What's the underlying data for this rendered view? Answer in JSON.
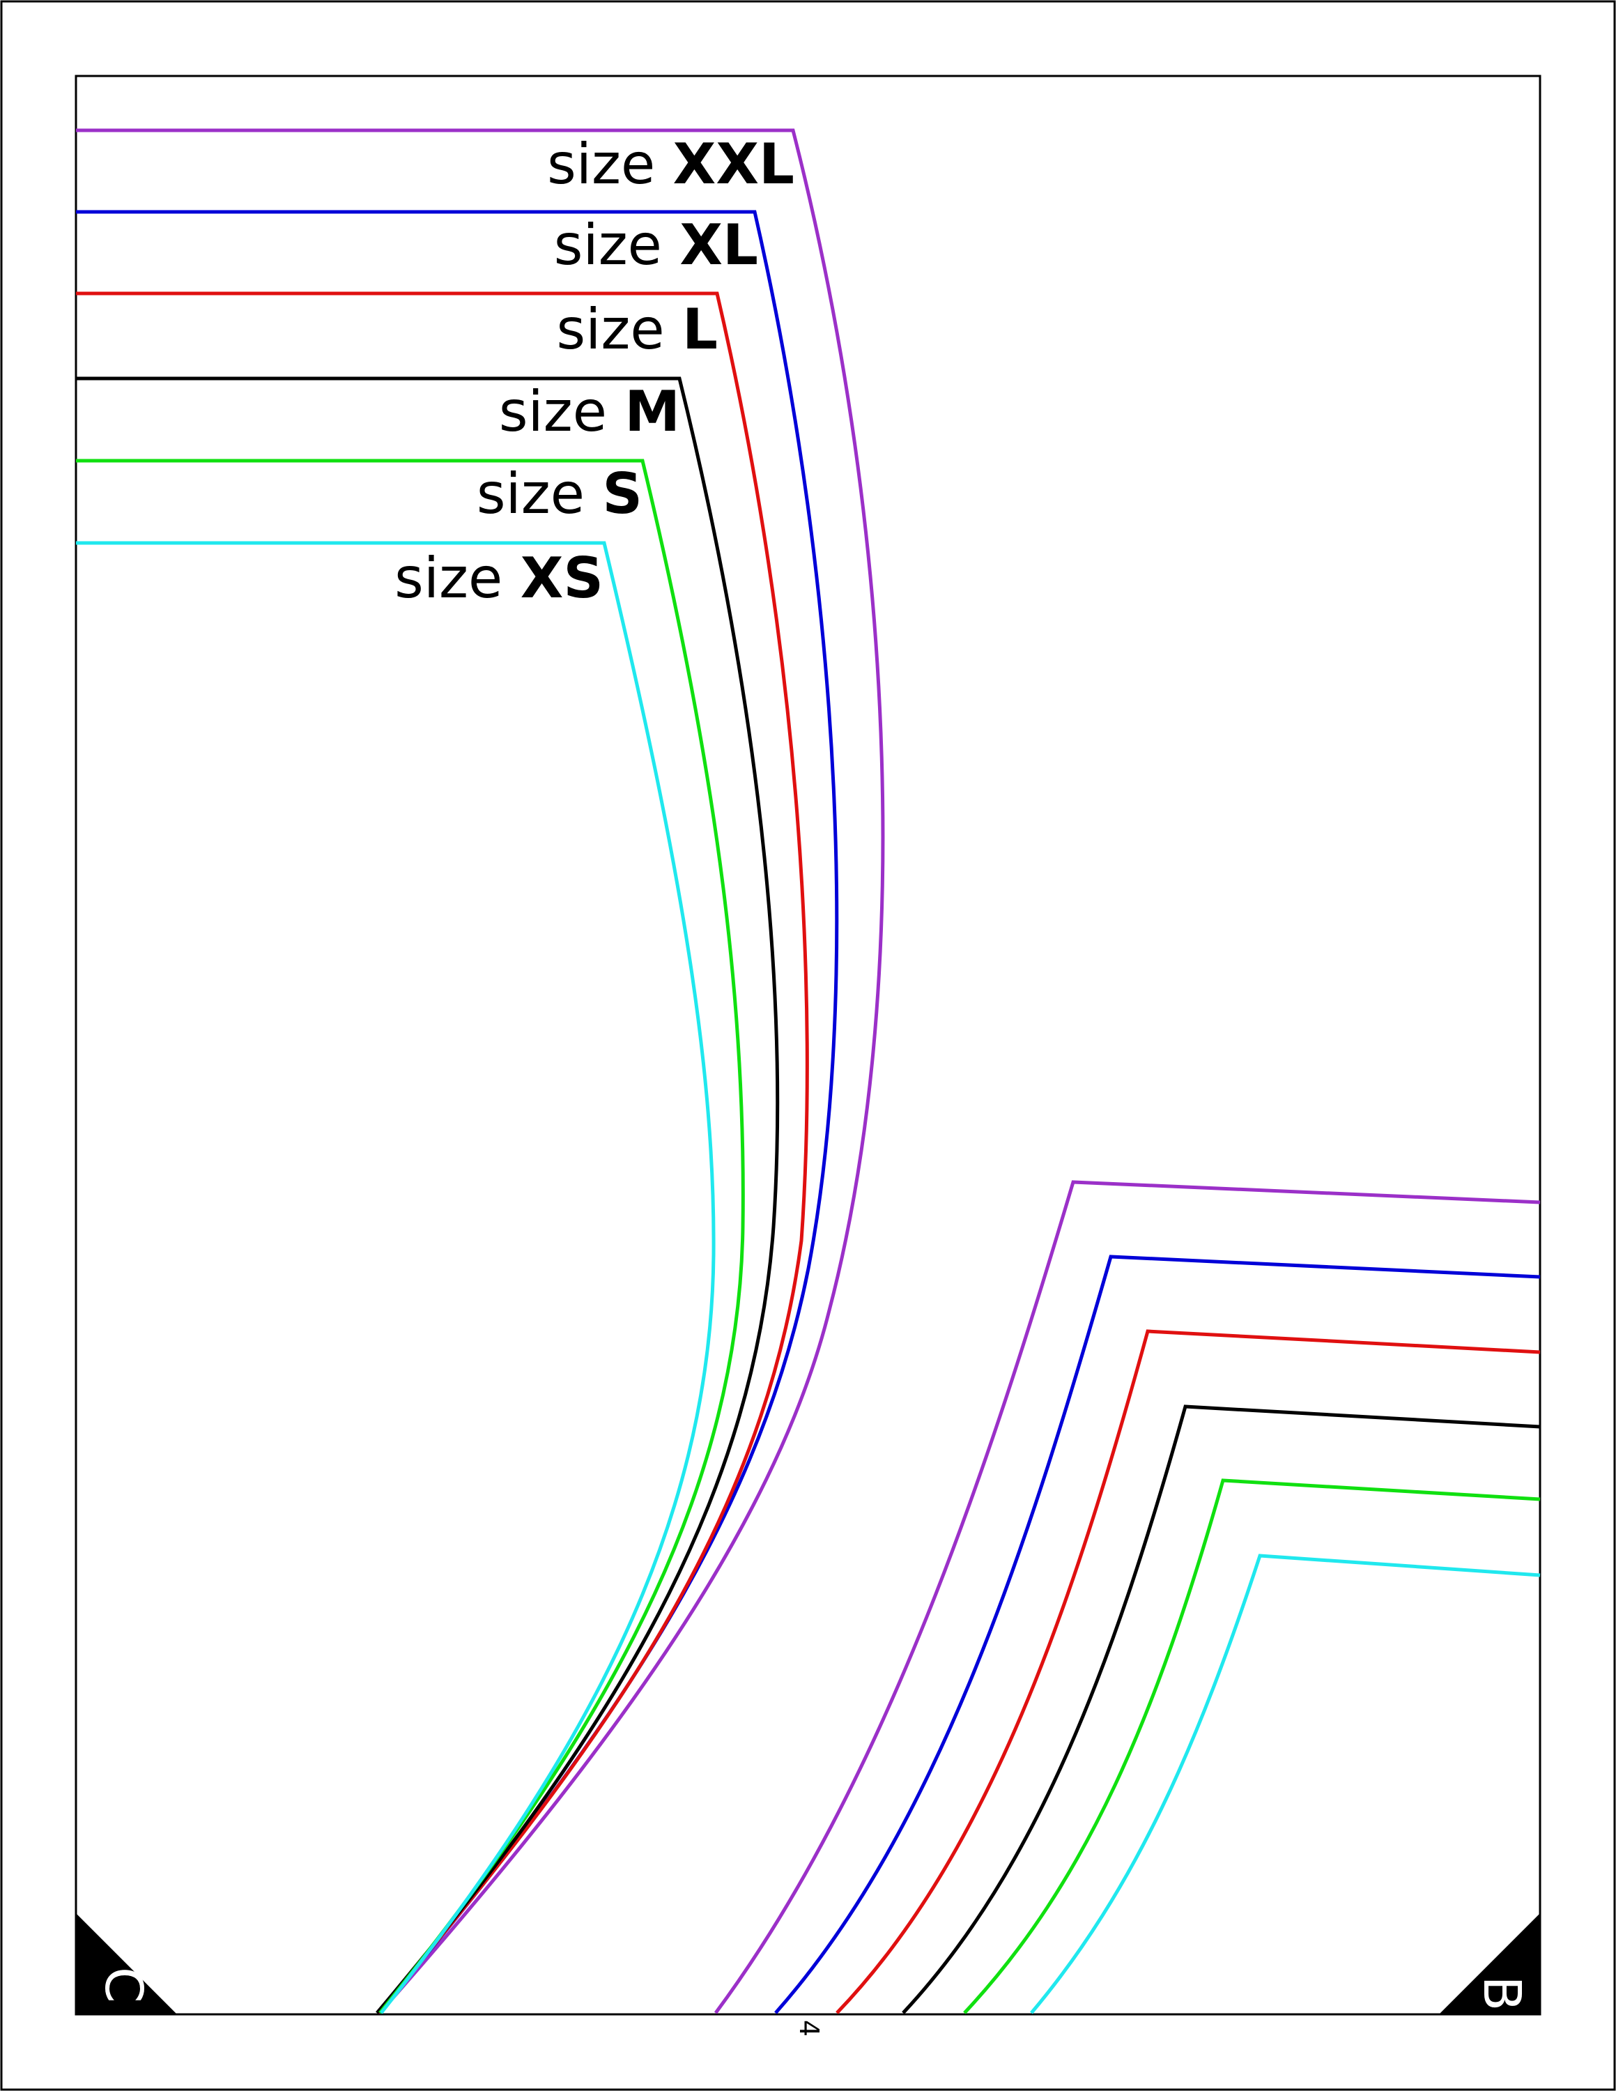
{
  "sizes": [
    {
      "prefix": "size",
      "code": "XXL",
      "color": "#9b30c8"
    },
    {
      "prefix": "size",
      "code": "XL",
      "color": "#0000d8"
    },
    {
      "prefix": "size",
      "code": "L",
      "color": "#e01010"
    },
    {
      "prefix": "size",
      "code": "M",
      "color": "#000000"
    },
    {
      "prefix": "size",
      "code": "S",
      "color": "#10e010"
    },
    {
      "prefix": "size",
      "code": "XS",
      "color": "#20e8ee"
    }
  ],
  "corners": {
    "left": "C",
    "right": "B"
  },
  "page_number": "4"
}
